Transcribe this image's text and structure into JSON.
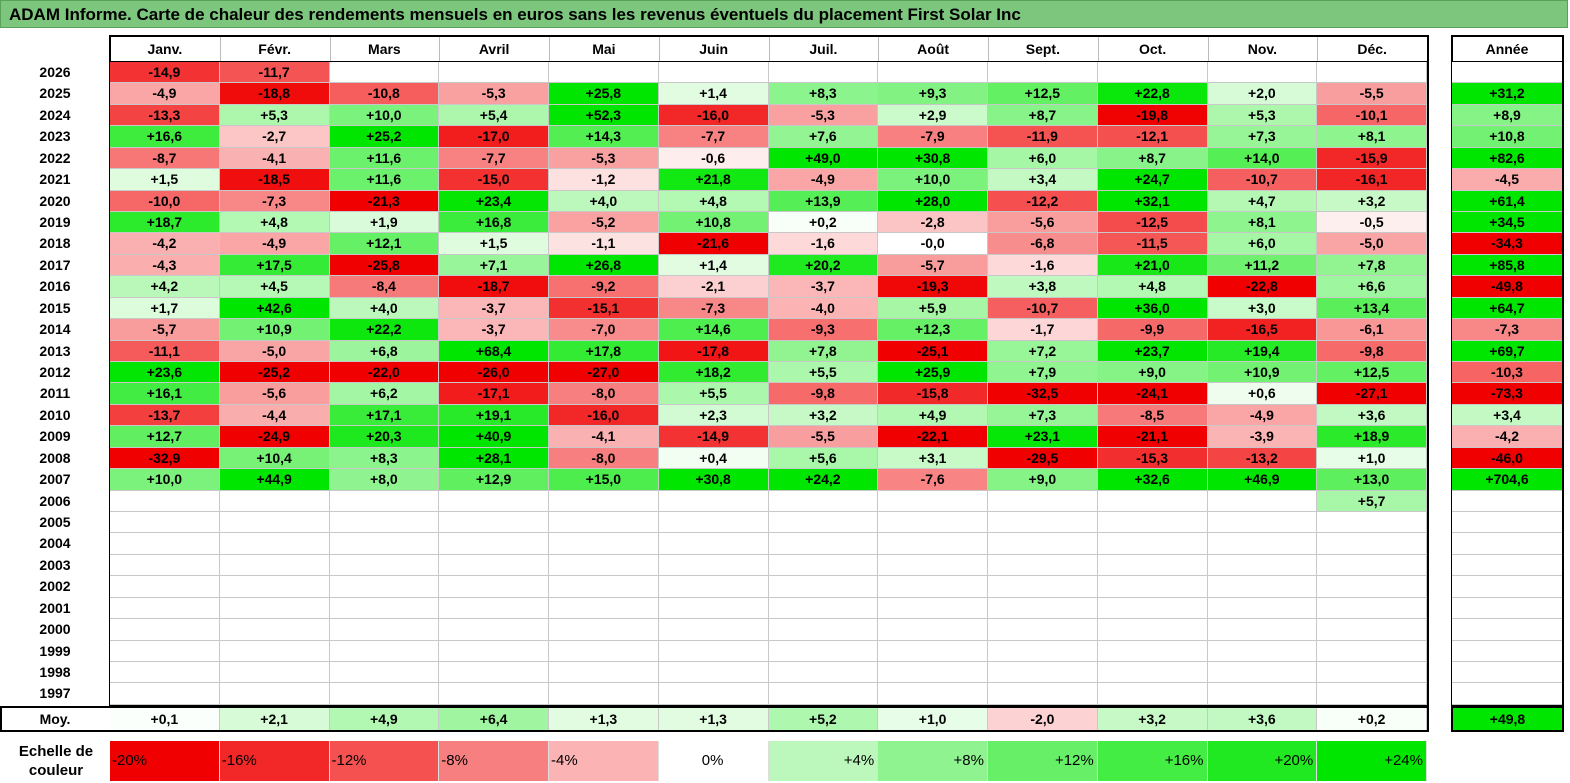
{
  "title": "ADAM Informe. Carte de chaleur des rendements mensuels en euros sans les revenus éventuels du placement First Solar Inc",
  "chart_data": {
    "type": "heatmap",
    "columns": [
      "Janv.",
      "Févr.",
      "Mars",
      "Avril",
      "Mai",
      "Juin",
      "Juil.",
      "Août",
      "Sept.",
      "Oct.",
      "Nov.",
      "Déc."
    ],
    "year_column": "Année",
    "rows": [
      {
        "year": "2026",
        "values": [
          -14.9,
          -11.7,
          null,
          null,
          null,
          null,
          null,
          null,
          null,
          null,
          null,
          null
        ],
        "annual": null
      },
      {
        "year": "2025",
        "values": [
          -4.9,
          -18.8,
          -10.8,
          -5.3,
          25.8,
          1.4,
          8.3,
          9.3,
          12.5,
          22.8,
          2.0,
          -5.5
        ],
        "annual": 31.2
      },
      {
        "year": "2024",
        "values": [
          -13.3,
          5.3,
          10.0,
          5.4,
          52.3,
          -16.0,
          -5.3,
          2.9,
          8.7,
          -19.8,
          5.3,
          -10.1
        ],
        "annual": 8.9
      },
      {
        "year": "2023",
        "values": [
          16.6,
          -2.7,
          25.2,
          -17.0,
          14.3,
          -7.7,
          7.6,
          -7.9,
          -11.9,
          -12.1,
          7.3,
          8.1
        ],
        "annual": 10.8
      },
      {
        "year": "2022",
        "values": [
          -8.7,
          -4.1,
          11.6,
          -7.7,
          -5.3,
          -0.6,
          49.0,
          30.8,
          6.0,
          8.7,
          14.0,
          -15.9
        ],
        "annual": 82.6
      },
      {
        "year": "2021",
        "values": [
          1.5,
          -18.5,
          11.6,
          -15.0,
          -1.2,
          21.8,
          -4.9,
          10.0,
          3.4,
          24.7,
          -10.7,
          -16.1
        ],
        "annual": -4.5
      },
      {
        "year": "2020",
        "values": [
          -10.0,
          -7.3,
          -21.3,
          23.4,
          4.0,
          4.8,
          13.9,
          28.0,
          -12.2,
          32.1,
          4.7,
          3.2
        ],
        "annual": 61.4
      },
      {
        "year": "2019",
        "values": [
          18.7,
          4.8,
          1.9,
          16.8,
          -5.2,
          10.8,
          0.2,
          -2.8,
          -5.6,
          -12.5,
          8.1,
          -0.5
        ],
        "annual": 34.5
      },
      {
        "year": "2018",
        "values": [
          -4.2,
          -4.9,
          12.1,
          1.5,
          -1.1,
          -21.6,
          -1.6,
          -0.0,
          -6.8,
          -11.5,
          6.0,
          -5.0
        ],
        "annual": -34.3
      },
      {
        "year": "2017",
        "values": [
          -4.3,
          17.5,
          -25.8,
          7.1,
          26.8,
          1.4,
          20.2,
          -5.7,
          -1.6,
          21.0,
          11.2,
          7.8
        ],
        "annual": 85.8
      },
      {
        "year": "2016",
        "values": [
          4.2,
          4.5,
          -8.4,
          -18.7,
          -9.2,
          -2.1,
          -3.7,
          -19.3,
          3.8,
          4.8,
          -22.8,
          6.6
        ],
        "annual": -49.8
      },
      {
        "year": "2015",
        "values": [
          1.7,
          42.6,
          4.0,
          -3.7,
          -15.1,
          -7.3,
          -4.0,
          5.9,
          -10.7,
          36.0,
          3.0,
          13.4
        ],
        "annual": 64.7
      },
      {
        "year": "2014",
        "values": [
          -5.7,
          10.9,
          22.2,
          -3.7,
          -7.0,
          14.6,
          -9.3,
          12.3,
          -1.7,
          -9.9,
          -16.5,
          -6.1
        ],
        "annual": -7.3
      },
      {
        "year": "2013",
        "values": [
          -11.1,
          -5.0,
          6.8,
          68.4,
          17.8,
          -17.8,
          7.8,
          -25.1,
          7.2,
          23.7,
          19.4,
          -9.8
        ],
        "annual": 69.7
      },
      {
        "year": "2012",
        "values": [
          23.6,
          -25.2,
          -22.0,
          -26.0,
          -27.0,
          18.2,
          5.5,
          25.9,
          7.9,
          9.0,
          10.9,
          12.5
        ],
        "annual": -10.3
      },
      {
        "year": "2011",
        "values": [
          16.1,
          -5.6,
          6.2,
          -17.1,
          -8.0,
          5.5,
          -9.8,
          -15.8,
          -32.5,
          -24.1,
          0.6,
          -27.1
        ],
        "annual": -73.3
      },
      {
        "year": "2010",
        "values": [
          -13.7,
          -4.4,
          17.1,
          19.1,
          -16.0,
          2.3,
          3.2,
          4.9,
          7.3,
          -8.5,
          -4.9,
          3.6
        ],
        "annual": 3.4
      },
      {
        "year": "2009",
        "values": [
          12.7,
          -24.9,
          20.3,
          40.9,
          -4.1,
          -14.9,
          -5.5,
          -22.1,
          23.1,
          -21.1,
          -3.9,
          18.9
        ],
        "annual": -4.2
      },
      {
        "year": "2008",
        "values": [
          -32.9,
          10.4,
          8.3,
          28.1,
          -8.0,
          0.4,
          5.6,
          3.1,
          -29.5,
          -15.3,
          -13.2,
          1.0
        ],
        "annual": -46.0
      },
      {
        "year": "2007",
        "values": [
          10.0,
          44.9,
          8.0,
          12.9,
          15.0,
          30.8,
          24.2,
          -7.6,
          9.0,
          32.6,
          46.9,
          13.0
        ],
        "annual": 704.6
      },
      {
        "year": "2006",
        "values": [
          null,
          null,
          null,
          null,
          null,
          null,
          null,
          null,
          null,
          null,
          null,
          5.7
        ],
        "annual": null
      },
      {
        "year": "2005",
        "values": [
          null,
          null,
          null,
          null,
          null,
          null,
          null,
          null,
          null,
          null,
          null,
          null
        ],
        "annual": null
      },
      {
        "year": "2004",
        "values": [
          null,
          null,
          null,
          null,
          null,
          null,
          null,
          null,
          null,
          null,
          null,
          null
        ],
        "annual": null
      },
      {
        "year": "2003",
        "values": [
          null,
          null,
          null,
          null,
          null,
          null,
          null,
          null,
          null,
          null,
          null,
          null
        ],
        "annual": null
      },
      {
        "year": "2002",
        "values": [
          null,
          null,
          null,
          null,
          null,
          null,
          null,
          null,
          null,
          null,
          null,
          null
        ],
        "annual": null
      },
      {
        "year": "2001",
        "values": [
          null,
          null,
          null,
          null,
          null,
          null,
          null,
          null,
          null,
          null,
          null,
          null
        ],
        "annual": null
      },
      {
        "year": "2000",
        "values": [
          null,
          null,
          null,
          null,
          null,
          null,
          null,
          null,
          null,
          null,
          null,
          null
        ],
        "annual": null
      },
      {
        "year": "1999",
        "values": [
          null,
          null,
          null,
          null,
          null,
          null,
          null,
          null,
          null,
          null,
          null,
          null
        ],
        "annual": null
      },
      {
        "year": "1998",
        "values": [
          null,
          null,
          null,
          null,
          null,
          null,
          null,
          null,
          null,
          null,
          null,
          null
        ],
        "annual": null
      },
      {
        "year": "1997",
        "values": [
          null,
          null,
          null,
          null,
          null,
          null,
          null,
          null,
          null,
          null,
          null,
          null
        ],
        "annual": null
      }
    ],
    "average": {
      "label": "Moy.",
      "values": [
        0.1,
        2.1,
        4.9,
        6.4,
        1.3,
        1.3,
        5.2,
        1.0,
        -2.0,
        3.2,
        3.6,
        0.2
      ],
      "annual": 49.8
    },
    "scale": {
      "label": "Echelle de couleur",
      "steps": [
        {
          "text": "-20%",
          "value": -20
        },
        {
          "text": "-16%",
          "value": -16
        },
        {
          "text": "-12%",
          "value": -12
        },
        {
          "text": "-8%",
          "value": -8
        },
        {
          "text": "-4%",
          "value": -4
        },
        {
          "text": "0%",
          "value": 0
        },
        {
          "text": "+4%",
          "value": 4
        },
        {
          "text": "+8%",
          "value": 8
        },
        {
          "text": "+12%",
          "value": 12
        },
        {
          "text": "+16%",
          "value": 16
        },
        {
          "text": "+20%",
          "value": 20
        },
        {
          "text": "+24%",
          "value": 24
        }
      ]
    }
  }
}
